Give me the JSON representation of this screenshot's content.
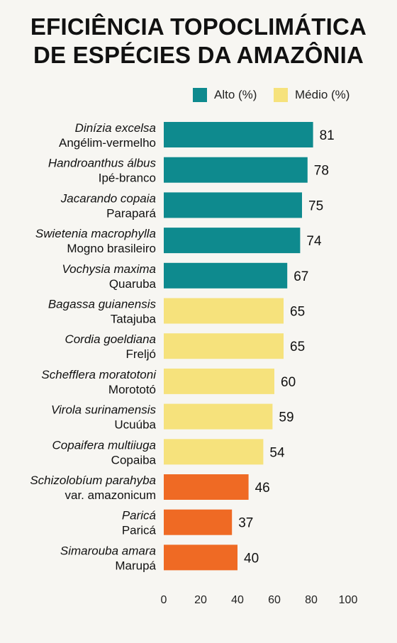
{
  "title_line1": "EFICIÊNCIA TOPOCLIMÁTICA",
  "title_line2": "DE ESPÉCIES DA AMAZÔNIA",
  "legend": [
    {
      "label": "Alto (%)",
      "color": "#0e8a8e"
    },
    {
      "label": "Médio (%)",
      "color": "#f6e27c"
    }
  ],
  "chart_data": {
    "type": "bar",
    "orientation": "horizontal",
    "categories": [
      {
        "scientific": "Dinízia excelsa",
        "common": "Angélim-vermelho"
      },
      {
        "scientific": "Handroanthus álbus",
        "common": "Ipé-branco"
      },
      {
        "scientific": "Jacarando copaia",
        "common": "Parapará"
      },
      {
        "scientific": "Swietenia macrophylla",
        "common": "Mogno brasileiro"
      },
      {
        "scientific": "Vochysia maxima",
        "common": "Quaruba"
      },
      {
        "scientific": "Bagassa guianensis",
        "common": "Tatajuba"
      },
      {
        "scientific": "Cordia goeldiana",
        "common": "Freljó"
      },
      {
        "scientific": "Schefflera moratotoni",
        "common": "Morototó"
      },
      {
        "scientific": "Virola surinamensis",
        "common": "Ucuúba"
      },
      {
        "scientific": "Copaifera multiiuga",
        "common": "Copaiba"
      },
      {
        "scientific": "Schizolobíum parahyba",
        "common": "var. amazonicum"
      },
      {
        "scientific": "Paricá",
        "common": "Paricá"
      },
      {
        "scientific": "Simarouba amara",
        "common": "Marupá"
      }
    ],
    "values": [
      81,
      78,
      75,
      74,
      67,
      65,
      65,
      60,
      59,
      54,
      46,
      37,
      40
    ],
    "bar_colors": [
      "#0e8a8e",
      "#0e8a8e",
      "#0e8a8e",
      "#0e8a8e",
      "#0e8a8e",
      "#f6e27c",
      "#f6e27c",
      "#f6e27c",
      "#f6e27c",
      "#f6e27c",
      "#ef6a24",
      "#ef6a24",
      "#ef6a24"
    ],
    "xticks": [
      0,
      20,
      40,
      60,
      80,
      100
    ],
    "xlim": [
      0,
      100
    ],
    "grid": false
  }
}
